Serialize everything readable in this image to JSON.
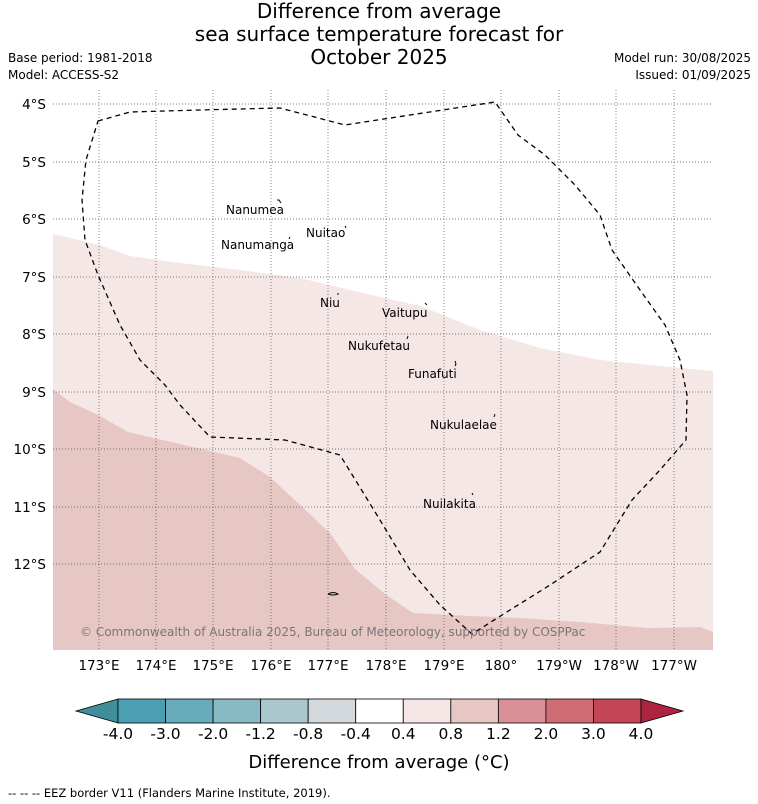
{
  "title": {
    "line1": "Difference from average",
    "line2": "sea surface temperature forecast for",
    "line3": "October 2025"
  },
  "meta": {
    "base_period": "Base period: 1981-2018",
    "model": "Model: ACCESS-S2",
    "model_run": "Model run: 30/08/2025",
    "issued": "Issued: 01/09/2025"
  },
  "map": {
    "lat_labels": [
      "4°S",
      "5°S",
      "6°S",
      "7°S",
      "8°S",
      "9°S",
      "10°S",
      "11°S",
      "12°S"
    ],
    "lon_labels": [
      "173°E",
      "174°E",
      "175°E",
      "176°E",
      "177°E",
      "178°E",
      "179°E",
      "180°",
      "179°W",
      "178°W",
      "177°W"
    ],
    "islands": [
      "Nanumea",
      "Nuitao",
      "Nanumanga",
      "Niu",
      "Vaitupu",
      "Nukufetau",
      "Funafuti",
      "Nukulaelae",
      "Nuilakita"
    ],
    "copyright": "© Commonwealth of Australia 2025, Bureau of Meteorology, supported by COSPPac"
  },
  "colorbar": {
    "ticks": [
      "-4.0",
      "-3.0",
      "-2.0",
      "-1.2",
      "-0.8",
      "-0.4",
      "0.4",
      "0.8",
      "1.2",
      "2.0",
      "3.0",
      "4.0"
    ],
    "colors": [
      "#4a9fb2",
      "#68abba",
      "#87bac5",
      "#a9c7cc",
      "#d3d9dc",
      "#ffffff",
      "#f4e7e5",
      "#e7c7c3",
      "#d98f96",
      "#cf6b73",
      "#c34656"
    ],
    "low_extend_color": "#3f8f9b",
    "high_extend_color": "#ad2340",
    "label": "Difference from average (°C)"
  },
  "footer": "--  --  -- EEZ border V11 (Flanders Marine Institute, 2019)."
}
